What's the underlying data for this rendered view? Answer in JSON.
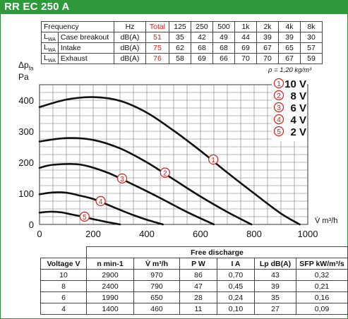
{
  "title": "RR EC 250 A",
  "sound_table": {
    "header": [
      "Frequency",
      "Hz",
      "Total",
      "125",
      "250",
      "500",
      "1k",
      "2k",
      "4k",
      "8k"
    ],
    "rows": [
      {
        "symbol": "LWA",
        "label": "Case breakout",
        "unit": "dB(A)",
        "total": "51",
        "values": [
          "35",
          "42",
          "49",
          "44",
          "39",
          "39",
          "30"
        ]
      },
      {
        "symbol": "LWA",
        "label": "Intake",
        "unit": "dB(A)",
        "total": "75",
        "values": [
          "62",
          "68",
          "68",
          "69",
          "67",
          "65",
          "57"
        ]
      },
      {
        "symbol": "LWA",
        "label": "Exhaust",
        "unit": "dB(A)",
        "total": "76",
        "values": [
          "58",
          "69",
          "66",
          "70",
          "70",
          "67",
          "59"
        ]
      }
    ]
  },
  "density_note": "ρ = 1,20 kg/m³",
  "chart_data": {
    "type": "line",
    "ylabel": "Δpfa Pa",
    "xlabel": "V̇ m³/h",
    "xlim": [
      0,
      1000
    ],
    "ylim": [
      0,
      450
    ],
    "xticks": [
      0,
      200,
      400,
      600,
      800,
      1000
    ],
    "yticks": [
      0,
      100,
      200,
      300,
      400
    ],
    "grid": true,
    "legend_position": "top-right",
    "series": [
      {
        "name": "10 V",
        "marker": "1",
        "x": [
          0,
          100,
          200,
          300,
          400,
          500,
          600,
          700,
          800,
          900,
          970
        ],
        "y": [
          378,
          402,
          410,
          398,
          360,
          302,
          237,
          167,
          100,
          35,
          0
        ]
      },
      {
        "name": "8 V",
        "marker": "2",
        "x": [
          0,
          100,
          200,
          300,
          400,
          500,
          600,
          700,
          790
        ],
        "y": [
          267,
          278,
          272,
          245,
          200,
          145,
          90,
          40,
          0
        ]
      },
      {
        "name": "6 V",
        "marker": "3",
        "x": [
          0,
          50,
          150,
          250,
          350,
          450,
          550,
          650
        ],
        "y": [
          182,
          192,
          193,
          168,
          128,
          85,
          40,
          0
        ]
      },
      {
        "name": "4 V",
        "marker": "4",
        "x": [
          0,
          50,
          100,
          150,
          200,
          250,
          300,
          350,
          400,
          460
        ],
        "y": [
          97,
          103,
          102,
          93,
          82,
          65,
          47,
          30,
          15,
          0
        ]
      },
      {
        "name": "2 V",
        "marker": "5",
        "x": [
          0,
          40,
          80,
          120,
          160,
          200,
          250,
          300
        ],
        "y": [
          38,
          41,
          39,
          32,
          25,
          17,
          8,
          0
        ]
      }
    ]
  },
  "legend_markers": [
    "1",
    "2",
    "3",
    "4",
    "5"
  ],
  "free_discharge": {
    "title": "Free discharge",
    "headers": [
      "Voltage V",
      "n min-1",
      "V̇ m³/h",
      "P W",
      "I A",
      "Lp dB(A)",
      "SFP kW/m³/s"
    ],
    "rows": [
      [
        "10",
        "2900",
        "970",
        "86",
        "0,70",
        "43",
        "0,32"
      ],
      [
        "8",
        "2400",
        "790",
        "47",
        "0,45",
        "39",
        "0,21"
      ],
      [
        "6",
        "1990",
        "650",
        "28",
        "0,24",
        "35",
        "0,16"
      ],
      [
        "4",
        "1400",
        "460",
        "11",
        "0,10",
        "27",
        "0,09"
      ]
    ]
  },
  "colors": {
    "brand_green": "#2e9a3c",
    "marker_red": "#d0201a"
  }
}
